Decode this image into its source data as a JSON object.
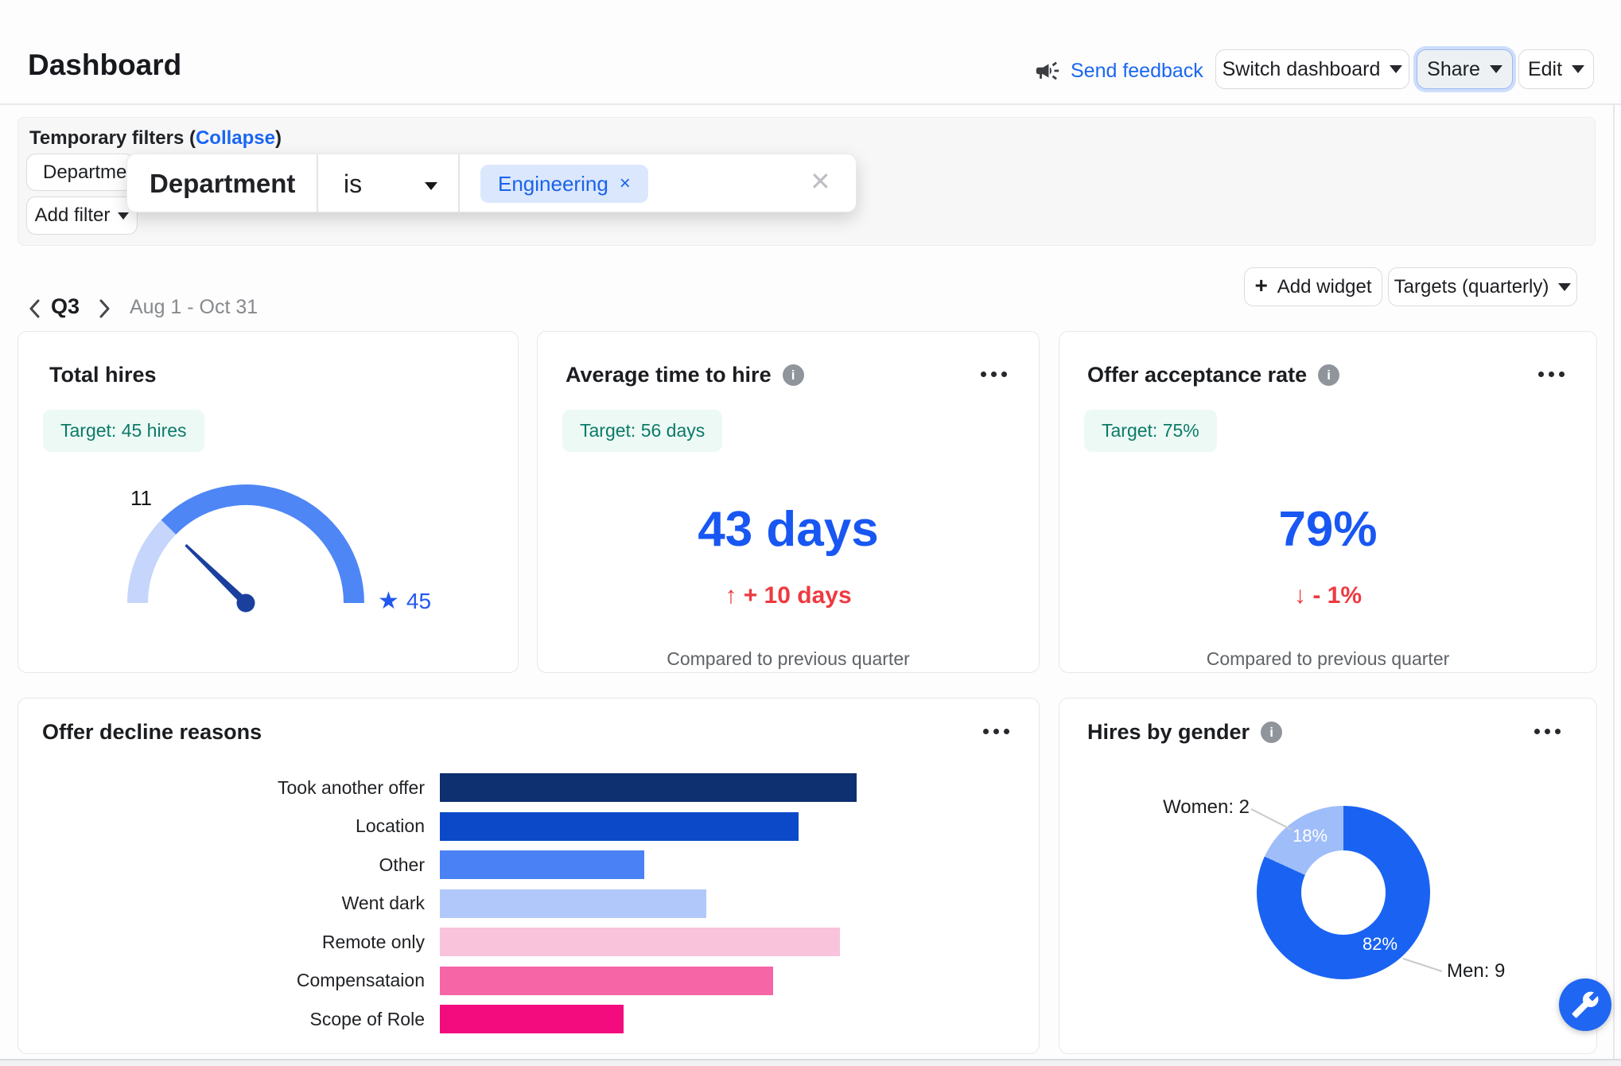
{
  "header": {
    "title": "Dashboard",
    "send_feedback": "Send feedback",
    "switch_dashboard": "Switch dashboard",
    "share": "Share",
    "edit": "Edit"
  },
  "filters": {
    "label_prefix": "Temporary filters (",
    "collapse_link": "Collapse",
    "label_suffix": ")",
    "department_chip": "Department",
    "add_filter_chip": "Add filter",
    "popup": {
      "field": "Department",
      "operator": "is",
      "value_chip": "Engineering",
      "remove_value_icon": "×",
      "close_icon": "✕"
    }
  },
  "period_nav": {
    "quarter": "Q3",
    "date_range": "Aug 1 - Oct 31",
    "add_widget_plus": "+",
    "add_widget": "Add widget",
    "targets": "Targets (quarterly)"
  },
  "cards": {
    "total_hires": {
      "title": "Total hires",
      "target_badge": "Target: 45 hires",
      "gauge_value_label": "11",
      "star_icon": "★",
      "gauge_target_label": "45"
    },
    "avg_time_to_hire": {
      "title": "Average time to hire",
      "target_badge": "Target: 56 days",
      "value": "43 days",
      "delta_arrow": "↑",
      "delta": "+ 10 days",
      "compare": "Compared to previous quarter"
    },
    "offer_acceptance": {
      "title": "Offer acceptance rate",
      "target_badge": "Target: 75%",
      "value": "79%",
      "delta_arrow": "↓",
      "delta": "- 1%",
      "compare": "Compared to previous quarter"
    },
    "offer_decline": {
      "title": "Offer decline reasons"
    },
    "hires_by_gender": {
      "title": "Hires by gender",
      "women_label": "Women: 2",
      "men_label": "Men: 9",
      "women_pct": "18%",
      "men_pct": "82%"
    }
  },
  "chart_data": [
    {
      "type": "gauge",
      "title": "Total hires",
      "value": 11,
      "target": 45,
      "value_label": "11",
      "target_marker_label": "45",
      "arc_start_deg": 180,
      "arc_end_deg": 0,
      "filled_fraction": 0.247,
      "needle_angle_deg": 136,
      "colors": {
        "filled": "#c5d5fb",
        "remaining": "#4e86f5",
        "needle": "#1a3f9d"
      }
    },
    {
      "type": "bar",
      "title": "Offer decline reasons",
      "orientation": "horizontal",
      "categories": [
        "Took another offer",
        "Location",
        "Other",
        "Went dark",
        "Remote only",
        "Compensataion",
        "Scope of Role"
      ],
      "values_relative_pct": [
        100,
        86,
        49,
        64,
        96,
        80,
        44
      ],
      "colors": [
        "#0e2f70",
        "#0c49c9",
        "#4a81f4",
        "#b1c8fa",
        "#f9c3dc",
        "#f666a7",
        "#f30c7d"
      ],
      "value_labels_shown": false
    },
    {
      "type": "donut",
      "title": "Hires by gender",
      "series": [
        {
          "name": "Men",
          "value": 9,
          "pct_label": "82%",
          "label": "Men: 9",
          "color": "#1a63f2"
        },
        {
          "name": "Women",
          "value": 2,
          "pct_label": "18%",
          "label": "Women: 2",
          "color": "#9fbdf9"
        }
      ],
      "legend_position": "callouts"
    }
  ]
}
